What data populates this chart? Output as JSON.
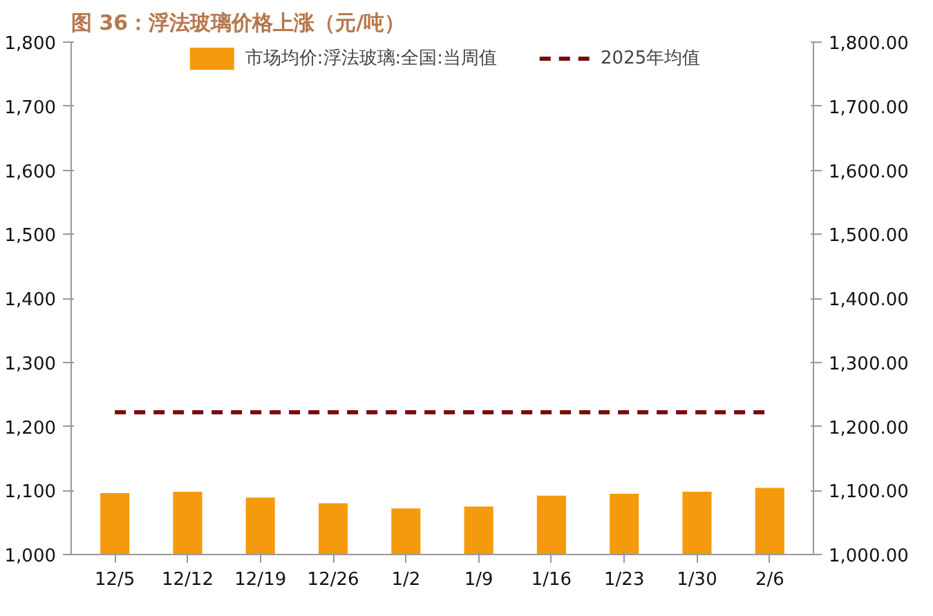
{
  "chart_data": {
    "type": "bar",
    "title": "图 36：浮法玻璃价格上涨（元/吨）",
    "categories": [
      "12/5",
      "12/12",
      "12/19",
      "12/26",
      "1/2",
      "1/9",
      "1/16",
      "1/23",
      "1/30",
      "2/6"
    ],
    "series": [
      {
        "name": "市场均价:浮法玻璃:全国:当周值",
        "color": "#f59a0c",
        "values": [
          1096,
          1098,
          1089,
          1080,
          1072,
          1075,
          1092,
          1095,
          1098,
          1104
        ]
      },
      {
        "name": "2025年均值",
        "color": "#7b0c0c",
        "type": "line",
        "line_style": "dashed",
        "values": [
          1222,
          1222,
          1222,
          1222,
          1222,
          1222,
          1222,
          1222,
          1222,
          1222
        ]
      }
    ],
    "ylim": [
      1000,
      1800
    ],
    "yticks": [
      {
        "value": 1000,
        "label": "1,000"
      },
      {
        "value": 1100,
        "label": "1,100"
      },
      {
        "value": 1200,
        "label": "1,200"
      },
      {
        "value": 1300,
        "label": "1,300"
      },
      {
        "value": 1400,
        "label": "1,400"
      },
      {
        "value": 1500,
        "label": "1,500"
      },
      {
        "value": 1600,
        "label": "1,600"
      },
      {
        "value": 1700,
        "label": "1,700"
      },
      {
        "value": 1800,
        "label": "1,800"
      }
    ],
    "y2lim": [
      1000,
      1800
    ],
    "y2ticks": [
      {
        "value": 1000,
        "label": "1,000.00"
      },
      {
        "value": 1100,
        "label": "1,100.00"
      },
      {
        "value": 1200,
        "label": "1,200.00"
      },
      {
        "value": 1300,
        "label": "1,300.00"
      },
      {
        "value": 1400,
        "label": "1,400.00"
      },
      {
        "value": 1500,
        "label": "1,500.00"
      },
      {
        "value": 1600,
        "label": "1,600.00"
      },
      {
        "value": 1700,
        "label": "1,700.00"
      },
      {
        "value": 1800,
        "label": "1,800.00"
      }
    ],
    "grid": false,
    "legend": "top"
  }
}
